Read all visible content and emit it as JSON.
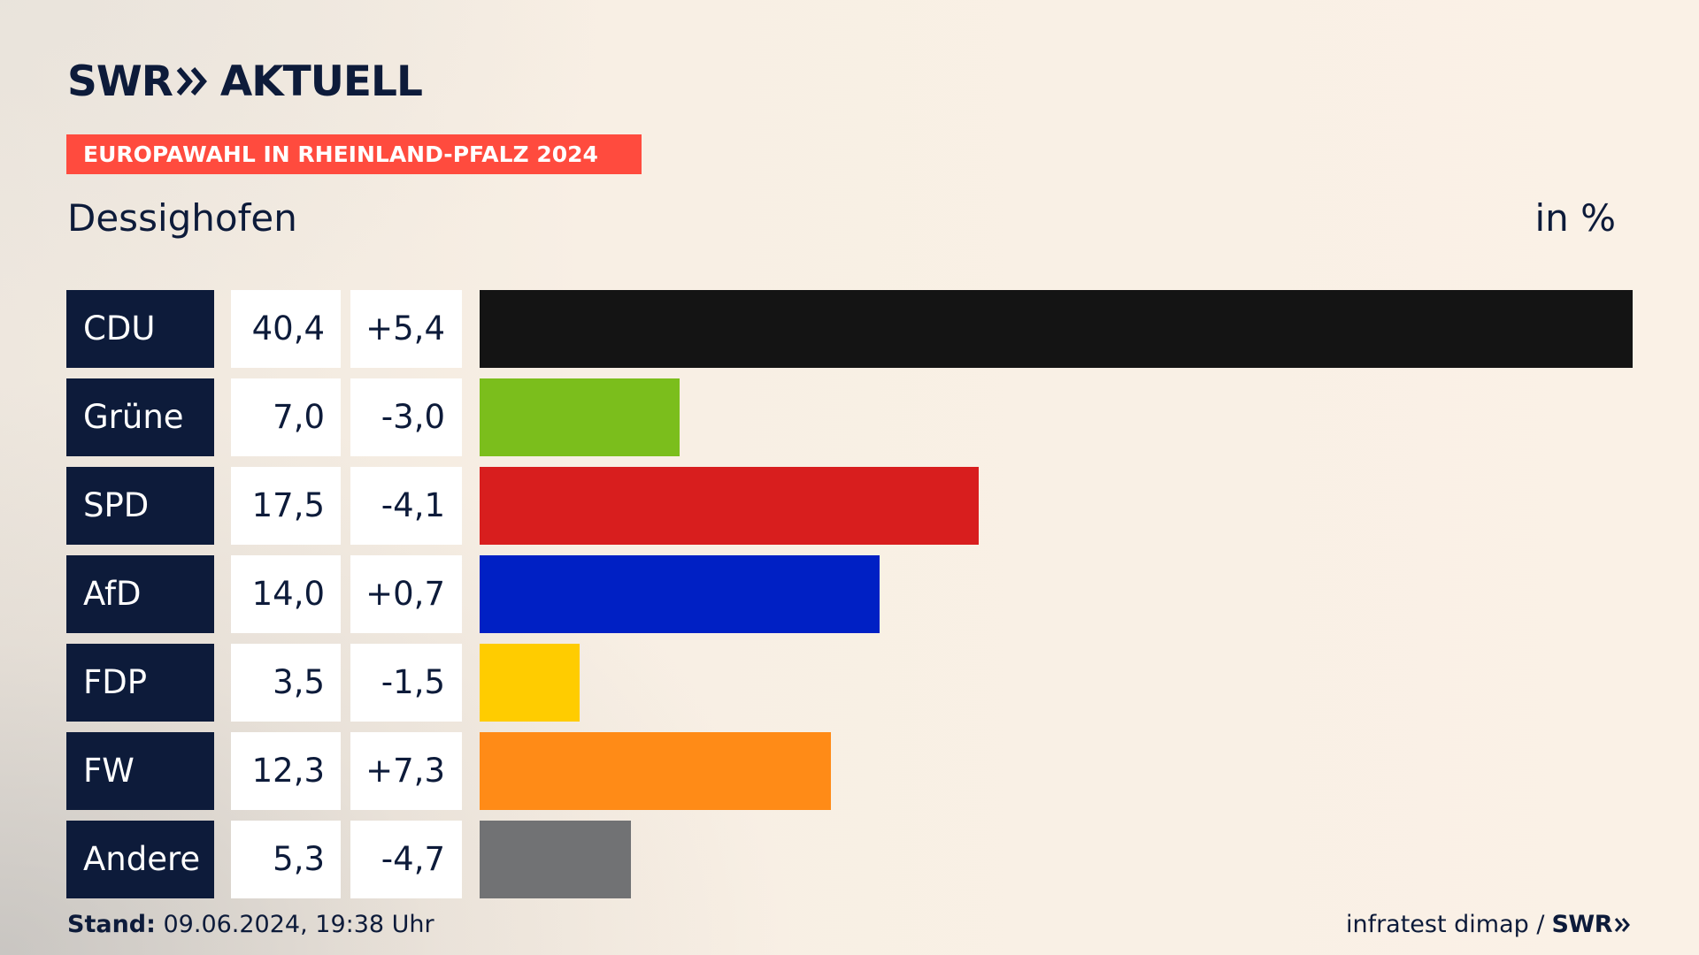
{
  "header": {
    "logo_text_left": "SWR",
    "logo_text_right": "AKTUELL",
    "logo_icon": "double-chevron-right-icon",
    "banner": "EUROPAWAHL IN RHEINLAND-PFALZ 2024",
    "location": "Dessighofen",
    "unit": "in %"
  },
  "colors": {
    "brand_navy": "#0d1b3a",
    "banner_red": "#ff4b3e"
  },
  "chart_data": {
    "type": "bar",
    "orientation": "horizontal",
    "title": "Dessighofen",
    "unit": "in %",
    "xlim": [
      0,
      40.4
    ],
    "categories": [
      "CDU",
      "Grüne",
      "SPD",
      "AfD",
      "FDP",
      "FW",
      "Andere"
    ],
    "values": [
      40.4,
      7.0,
      17.5,
      14.0,
      3.5,
      12.3,
      5.3
    ],
    "value_labels": [
      "40,4",
      "7,0",
      "17,5",
      "14,0",
      "3,5",
      "12,3",
      "5,3"
    ],
    "diffs": [
      5.4,
      -3.0,
      -4.1,
      0.7,
      -1.5,
      7.3,
      -4.7
    ],
    "diff_labels": [
      "+5,4",
      "-3,0",
      "-4,1",
      "+0,7",
      "-1,5",
      "+7,3",
      "-4,7"
    ],
    "colors": [
      "#141414",
      "#7bbe1c",
      "#d81e1e",
      "#0020c4",
      "#ffcc00",
      "#ff8b17",
      "#717274"
    ]
  },
  "footer": {
    "stand_label": "Stand:",
    "stand_value": " 09.06.2024, 19:38 Uhr",
    "source": "infratest dimap /",
    "brand": "SWR"
  }
}
